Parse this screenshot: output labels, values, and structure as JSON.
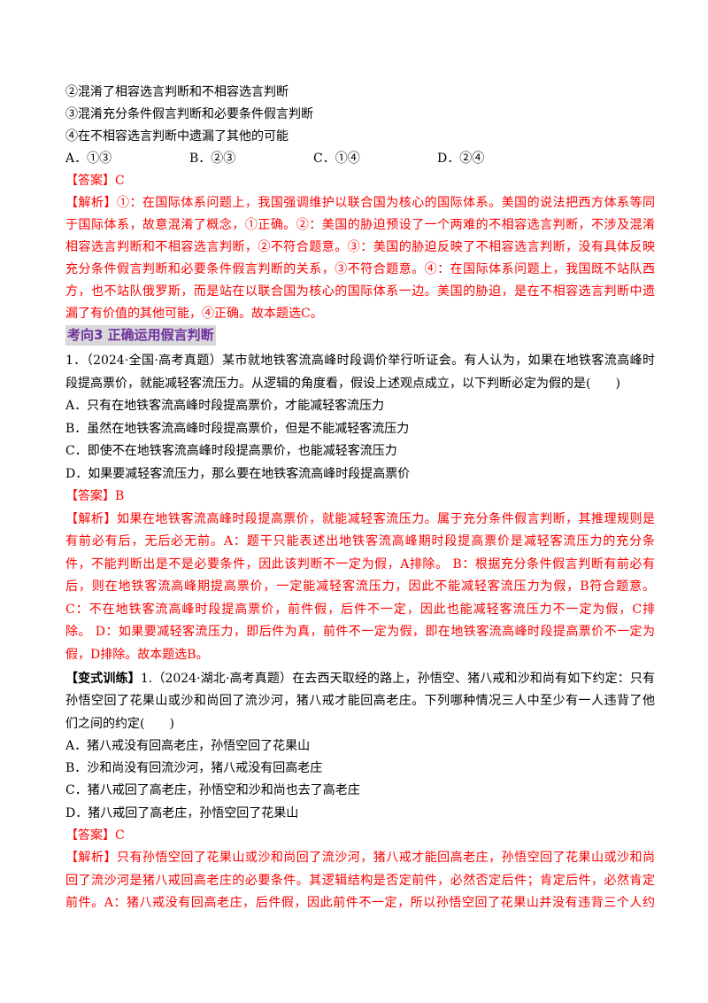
{
  "section1": {
    "statements": [
      "②混淆了相容选言判断和不相容选言判断",
      "③混淆充分条件假言判断和必要条件假言判断",
      "④在不相容选言判断中遗漏了其他的可能"
    ],
    "options": [
      "A．①③",
      "B．②③",
      "C．①④",
      "D．②④"
    ],
    "answer": "【答案】C",
    "analysis": [
      "【解析】①：在国际体系问题上，我国强调维护以联合国为核心的国际体系。美国的说法把西方体系等同",
      "于国际体系，故意混淆了概念，①正确。②：美国的胁迫预设了一个两难的不相容选言判断，不涉及混淆",
      "相容选言判断和不相容选言判断，②不符合题意。③：美国的胁迫反映了不相容选言判断，没有具体反映",
      "充分条件假言判断和必要条件假言判断的关系，③不符合题意。④：在国际体系问题上，我国既不站队西",
      "方，也不站队俄罗斯，而是站在以联合国为核心的国际体系一边。美国的胁迫，是在不相容选言判断中遗",
      "漏了有价值的其他可能，④正确。故本题选C。"
    ]
  },
  "heading": "考向3  正确运用假言判断",
  "question1": {
    "stem": [
      "1．（2024·全国·高考真题）某市就地铁客流高峰时段调价举行听证会。有人认为，如果在地铁客流高峰时",
      "段提高票价，就能减轻客流压力。从逻辑的角度看，假设上述观点成立，以下判断必定为假的是(　　)"
    ],
    "options": [
      "A．只有在地铁客流高峰时段提高票价，才能减轻客流压力",
      "B．虽然在地铁客流高峰时段提高票价，但是不能减轻客流压力",
      "C．即使不在地铁客流高峰时段提高票价，也能减轻客流压力",
      "D．如果要减轻客流压力，那么要在地铁客流高峰时段提高票价"
    ],
    "answer": "【答案】B",
    "analysis": [
      "【解析】如果在地铁客流高峰时段提高票价，就能减轻客流压力。属于充分条件假言判断，其推理规则是",
      "有前必有后，无后必无前。A：题干只能表述出地铁客流高峰期时段提高票价是减轻客流压力的充分条",
      "件，不能判断出是不是必要条件，因此该判断不一定为假，A排除。 B：根据充分条件假言判断有前必有",
      "后，则在地铁客流高峰期提高票价，一定能减轻客流压力，因此不能减轻客流压力为假，B符合题意。",
      "C：不在地铁客流高峰时段提高票价，前件假，后件不一定，因此也能减轻客流压力不一定为假，C排",
      "除。 D：如果要减轻客流压力，即后件为真，前件不一定为假，即在地铁客流高峰时段提高票价不一定为",
      "假，D排除。故本题选B。"
    ]
  },
  "variant": {
    "label": "【变式训练】",
    "stem": [
      "1.（2024·湖北·高考真题）在去西天取经的路上，孙悟空、猪八戒和沙和尚有如下约定：只有",
      "孙悟空回了花果山或沙和尚回了流沙河，猪八戒才能回高老庄。下列哪种情况三人中至少有一人违背了他",
      "们之间的约定(　　)"
    ],
    "options": [
      "A．猪八戒没有回高老庄，孙悟空回了花果山",
      "B．沙和尚没有回流沙河，猪八戒没有回高老庄",
      "C．猪八戒回了高老庄，孙悟空和沙和尚也去了高老庄",
      "D．猪八戒回了高老庄，孙悟空回了花果山"
    ],
    "answer": "【答案】C",
    "analysis": [
      "【解析】只有孙悟空回了花果山或沙和尚回了流沙河，猪八戒才能回高老庄，孙悟空回了花果山或沙和尚",
      "回了流沙河是猪八戒回高老庄的必要条件。其逻辑结构是否定前件，必然否定后件；肯定后件，必然肯定",
      "前件。A：猪八戒没有回高老庄，后件假，因此前件不一定，所以孙悟空回了花果山并没有违背三个人约"
    ]
  },
  "colors": {
    "answer": "#ff0000",
    "heading_text": "#7030a0",
    "heading_bg": "#d9d9d9"
  }
}
